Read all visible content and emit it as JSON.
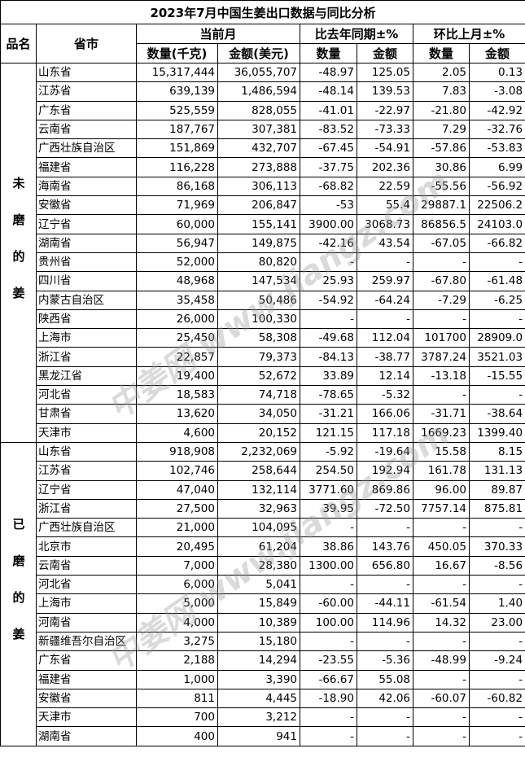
{
  "title": "2023年7月中国生姜出口数据与同比分析",
  "headers": {
    "category": "品名",
    "province": "省市",
    "current": "当前月",
    "yoy": "比去年同期±%",
    "mom": "环比上月±%",
    "qty_kg": "数量(千克)",
    "amount_usd": "金额(美元)",
    "qty": "数量",
    "amount": "金额"
  },
  "watermark": "中姜网 www.jiangz.com",
  "groups": [
    {
      "category": "未磨的姜",
      "rows": [
        [
          "山东省",
          "15,317,444",
          "36,055,707",
          "-48.97",
          "125.05",
          "2.05",
          "0.13"
        ],
        [
          "江苏省",
          "639,139",
          "1,486,594",
          "-48.14",
          "139.53",
          "7.83",
          "-3.08"
        ],
        [
          "广东省",
          "525,559",
          "828,055",
          "-41.01",
          "-22.97",
          "-21.80",
          "-42.92"
        ],
        [
          "云南省",
          "187,767",
          "307,381",
          "-83.52",
          "-73.33",
          "7.29",
          "-32.76"
        ],
        [
          "广西壮族自治区",
          "151,869",
          "432,707",
          "-67.45",
          "-54.91",
          "-57.86",
          "-53.83"
        ],
        [
          "福建省",
          "116,228",
          "273,888",
          "-37.75",
          "202.36",
          "30.86",
          "6.99"
        ],
        [
          "海南省",
          "86,168",
          "306,113",
          "-68.82",
          "22.59",
          "-55.56",
          "-56.92"
        ],
        [
          "安徽省",
          "71,969",
          "206,847",
          "-53",
          "55.4",
          "29887.1",
          "22506.2"
        ],
        [
          "辽宁省",
          "60,000",
          "155,141",
          "3900.00",
          "3068.73",
          "86856.5",
          "24103.0"
        ],
        [
          "湖南省",
          "56,947",
          "149,875",
          "-42.16",
          "43.54",
          "-67.05",
          "-66.82"
        ],
        [
          "贵州省",
          "52,000",
          "80,820",
          "-",
          "-",
          "-",
          "-"
        ],
        [
          "四川省",
          "48,968",
          "147,534",
          "25.93",
          "259.97",
          "-67.80",
          "-61.48"
        ],
        [
          "内蒙古自治区",
          "35,458",
          "50,486",
          "-54.92",
          "-64.24",
          "-7.29",
          "-6.25"
        ],
        [
          "陕西省",
          "26,000",
          "100,330",
          "-",
          "-",
          "-",
          "-"
        ],
        [
          "上海市",
          "25,450",
          "58,308",
          "-49.68",
          "112.04",
          "101700",
          "28909.0"
        ],
        [
          "浙江省",
          "22,857",
          "79,373",
          "-84.13",
          "-38.77",
          "3787.24",
          "3521.03"
        ],
        [
          "黑龙江省",
          "19,400",
          "52,672",
          "33.89",
          "12.14",
          "-13.18",
          "-15.55"
        ],
        [
          "河北省",
          "18,583",
          "74,718",
          "-78.65",
          "-5.32",
          "-",
          "-"
        ],
        [
          "甘肃省",
          "13,620",
          "34,050",
          "-31.21",
          "166.06",
          "-31.71",
          "-38.64"
        ],
        [
          "天津市",
          "4,600",
          "20,152",
          "121.15",
          "117.18",
          "1669.23",
          "1399.40"
        ]
      ]
    },
    {
      "category": "已磨的姜",
      "rows": [
        [
          "山东省",
          "918,908",
          "2,232,069",
          "-5.92",
          "-19.64",
          "15.58",
          "8.15"
        ],
        [
          "江苏省",
          "102,746",
          "258,644",
          "254.50",
          "192.94",
          "161.78",
          "131.13"
        ],
        [
          "辽宁省",
          "47,040",
          "132,114",
          "3771.60",
          "869.86",
          "96.00",
          "89.87"
        ],
        [
          "浙江省",
          "27,500",
          "32,963",
          "39.95",
          "-72.50",
          "7757.14",
          "875.81"
        ],
        [
          "广西壮族自治区",
          "21,000",
          "104,095",
          "-",
          "-",
          "-",
          "-"
        ],
        [
          "北京市",
          "20,495",
          "61,204",
          "38.86",
          "143.76",
          "450.05",
          "370.33"
        ],
        [
          "云南省",
          "7,000",
          "28,380",
          "1300.00",
          "656.80",
          "16.67",
          "-8.56"
        ],
        [
          "河北省",
          "6,000",
          "5,041",
          "-",
          "-",
          "-",
          "-"
        ],
        [
          "上海市",
          "5,000",
          "15,849",
          "-60.00",
          "-44.11",
          "-61.54",
          "1.40"
        ],
        [
          "河南省",
          "4,000",
          "10,389",
          "100.00",
          "114.96",
          "14.32",
          "23.00"
        ],
        [
          "新疆维吾尔自治区",
          "3,275",
          "15,180",
          "-",
          "-",
          "-",
          "-"
        ],
        [
          "广东省",
          "2,188",
          "14,294",
          "-23.55",
          "-5.36",
          "-48.99",
          "-9.24"
        ],
        [
          "福建省",
          "1,000",
          "3,390",
          "-66.67",
          "55.08",
          "-",
          "-"
        ],
        [
          "安徽省",
          "811",
          "4,445",
          "-18.90",
          "42.06",
          "-60.07",
          "-60.82"
        ],
        [
          "天津市",
          "700",
          "3,212",
          "-",
          "-",
          "-",
          "-"
        ],
        [
          "湖南省",
          "400",
          "941",
          "-",
          "-",
          "-",
          "-"
        ]
      ]
    }
  ]
}
